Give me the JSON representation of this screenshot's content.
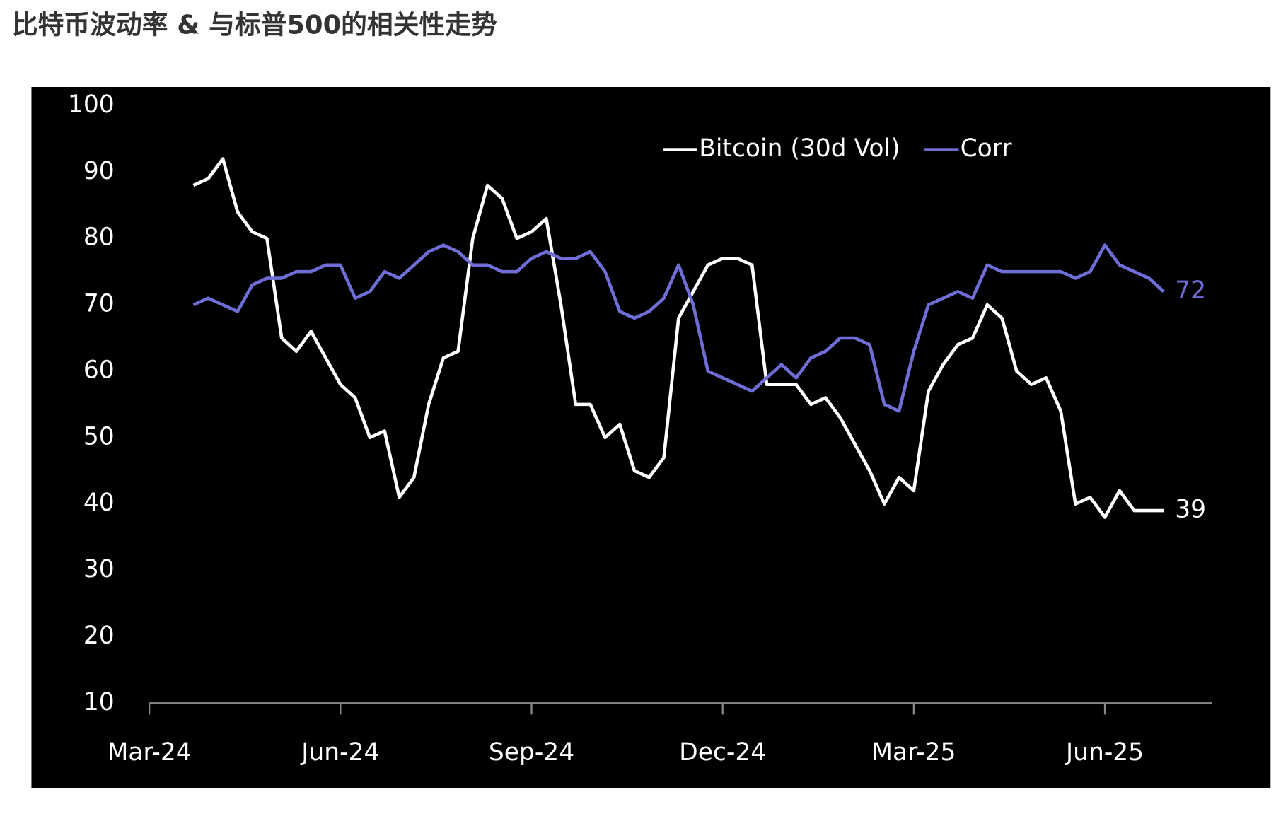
{
  "chart_data": {
    "type": "line",
    "title": "比特币波动率 & 与标普500的相关性走势",
    "categories": [
      "Mar-24",
      null,
      null,
      null,
      null,
      null,
      null,
      null,
      null,
      null,
      null,
      null,
      null,
      "Jun-24",
      null,
      null,
      null,
      null,
      null,
      null,
      null,
      null,
      null,
      null,
      null,
      null,
      "Sep-24",
      null,
      null,
      null,
      null,
      null,
      null,
      null,
      null,
      null,
      null,
      null,
      null,
      "Dec-24",
      null,
      null,
      null,
      null,
      null,
      null,
      null,
      null,
      null,
      null,
      null,
      null,
      "Mar-25",
      null,
      null,
      null,
      null,
      null,
      null,
      null,
      null,
      null,
      null,
      null,
      null,
      "Jun-25",
      null,
      null,
      null,
      null
    ],
    "series": [
      {
        "name": "Bitcoin (30d Vol)",
        "color": "#ffffff",
        "values": [
          null,
          null,
          null,
          88,
          89,
          92,
          84,
          81,
          80,
          65,
          63,
          66,
          62,
          58,
          56,
          50,
          51,
          41,
          44,
          55,
          62,
          63,
          80,
          88,
          86,
          80,
          81,
          83,
          70,
          55,
          55,
          50,
          52,
          45,
          44,
          47,
          68,
          72,
          76,
          77,
          77,
          76,
          58,
          58,
          58,
          55,
          56,
          53,
          49,
          45,
          40,
          44,
          42,
          57,
          61,
          64,
          65,
          70,
          68,
          60,
          58,
          59,
          54,
          40,
          41,
          38,
          42,
          39,
          39,
          39
        ]
      },
      {
        "name": "Corr",
        "color": "#6f6dd6",
        "values": [
          null,
          null,
          null,
          70,
          71,
          70,
          69,
          73,
          74,
          74,
          75,
          75,
          76,
          76,
          71,
          72,
          75,
          74,
          76,
          78,
          79,
          78,
          76,
          76,
          75,
          75,
          77,
          78,
          77,
          77,
          78,
          75,
          69,
          68,
          69,
          71,
          76,
          70,
          60,
          59,
          58,
          57,
          59,
          61,
          59,
          62,
          63,
          65,
          65,
          64,
          55,
          54,
          63,
          70,
          71,
          72,
          71,
          76,
          75,
          75,
          75,
          75,
          75,
          74,
          75,
          79,
          76,
          75,
          74,
          72
        ]
      }
    ],
    "ylim": [
      10,
      100
    ],
    "yticks": [
      10,
      20,
      30,
      40,
      50,
      60,
      70,
      80,
      90,
      100
    ],
    "grid": false,
    "legend": "top-right",
    "background": "#000000"
  }
}
